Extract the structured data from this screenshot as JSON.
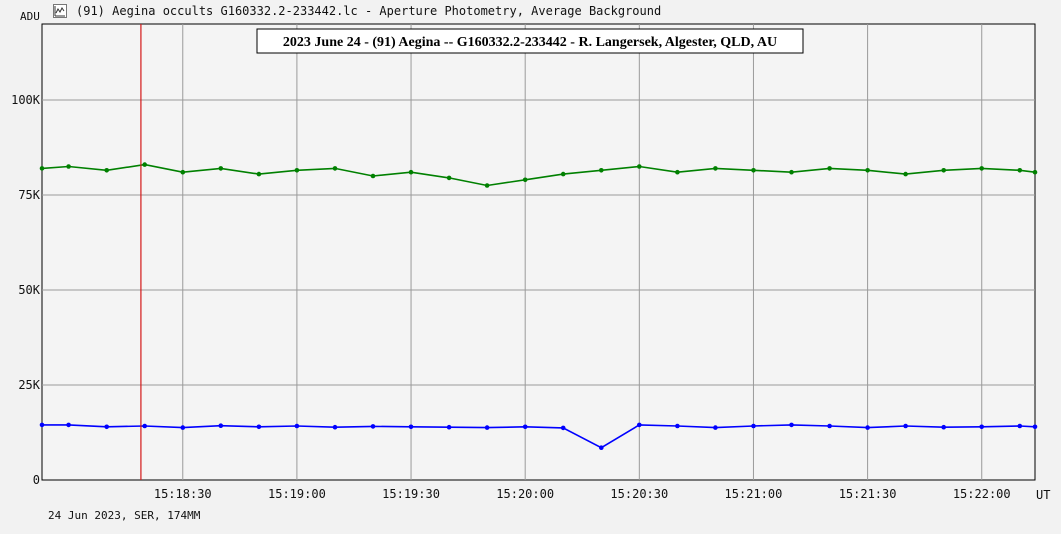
{
  "window": {
    "title": "(91) Aegina occults G160332.2-233442.lc - Aperture Photometry, Average Background",
    "y_unit": "ADU",
    "footer": "24 Jun 2023, SER, 174MM"
  },
  "icons": {
    "app": "chart-icon"
  },
  "colors": {
    "background": "#f2f2f2",
    "plot_background": "#f4f4f4",
    "grid": "#9a9a9a",
    "target_series": "#008000",
    "comparison_series": "#0000ff",
    "marker": "#d31919"
  },
  "chart_data": {
    "type": "line",
    "title": "2023 June 24 - (91) Aegina -- G160332.2-233442 - R. Langersek, Algester, QLD, AU",
    "xlabel": "UT",
    "ylabel": "ADU",
    "xlim": [
      "15:17:53",
      "15:22:14"
    ],
    "ylim": [
      0,
      120000
    ],
    "grid": true,
    "y_ticks": [
      0,
      25000,
      50000,
      75000,
      100000
    ],
    "y_tick_labels": [
      "0",
      "25K",
      "50K",
      "75K",
      "100K"
    ],
    "x_ticks": [
      "15:18:30",
      "15:19:00",
      "15:19:30",
      "15:20:00",
      "15:20:30",
      "15:21:00",
      "15:21:30",
      "15:22:00"
    ],
    "x_tick_labels": [
      "15:18:30",
      "15:19:00",
      "15:19:30",
      "15:20:00",
      "15:20:30",
      "15:21:00",
      "15:21:30",
      "15:22:00"
    ],
    "vertical_marker_time": "15:18:19",
    "series": [
      {
        "x": [
          "15:17:53",
          "15:18:00",
          "15:18:10",
          "15:18:20",
          "15:18:30",
          "15:18:40",
          "15:18:50",
          "15:19:00",
          "15:19:10",
          "15:19:20",
          "15:19:30",
          "15:19:40",
          "15:19:50",
          "15:20:00",
          "15:20:10",
          "15:20:20",
          "15:20:30",
          "15:20:40",
          "15:20:50",
          "15:21:00",
          "15:21:10",
          "15:21:20",
          "15:21:30",
          "15:21:40",
          "15:21:50",
          "15:22:00",
          "15:22:10",
          "15:22:14"
        ],
        "values": [
          82000,
          82500,
          81500,
          83000,
          81000,
          82000,
          80500,
          81500,
          82000,
          80000,
          81000,
          79500,
          77500,
          79000,
          80500,
          81500,
          82500,
          81000,
          82000,
          81500,
          81000,
          82000,
          81500,
          80500,
          81500,
          82000,
          81500,
          81000
        ],
        "color": "#008000"
      },
      {
        "x": [
          "15:17:53",
          "15:18:00",
          "15:18:10",
          "15:18:20",
          "15:18:30",
          "15:18:40",
          "15:18:50",
          "15:19:00",
          "15:19:10",
          "15:19:20",
          "15:19:30",
          "15:19:40",
          "15:19:50",
          "15:20:00",
          "15:20:10",
          "15:20:20",
          "15:20:30",
          "15:20:40",
          "15:20:50",
          "15:21:00",
          "15:21:10",
          "15:21:20",
          "15:21:30",
          "15:21:40",
          "15:21:50",
          "15:22:00",
          "15:22:10",
          "15:22:14"
        ],
        "values": [
          14500,
          14500,
          14000,
          14200,
          13800,
          14300,
          14000,
          14200,
          13900,
          14100,
          14000,
          13900,
          13800,
          14000,
          13700,
          8500,
          14500,
          14200,
          13800,
          14200,
          14500,
          14200,
          13800,
          14200,
          13900,
          14000,
          14200,
          14000
        ],
        "color": "#0000ff"
      }
    ]
  }
}
